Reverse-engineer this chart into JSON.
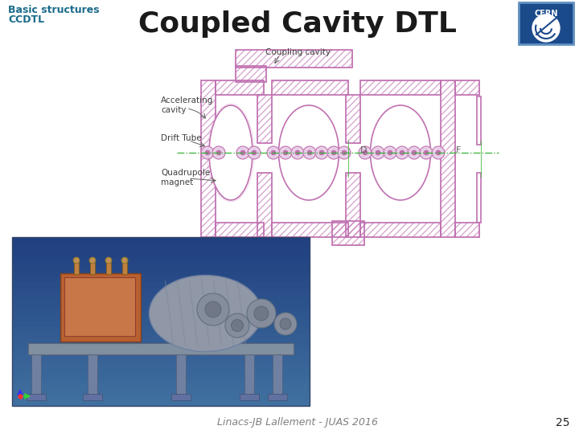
{
  "title": "Coupled Cavity DTL",
  "subtitle_line1": "Basic structures",
  "subtitle_line2": "CCDTL",
  "footer_text": "Linacs-JB Lallement - JUAS 2016",
  "page_number": "25",
  "bg_color": "#ffffff",
  "title_color": "#1a1a1a",
  "subtitle_color": "#1a6b8a",
  "footer_color": "#808080",
  "title_fontsize": 26,
  "subtitle_fontsize": 9,
  "footer_fontsize": 9,
  "page_fontsize": 10,
  "diagram_line_color": "#c070b0",
  "diagram_hatch_color": "#d090c0",
  "green_beam_color": "#30b030",
  "photo_bg_top": "#3060a0",
  "photo_bg_bot": "#203060",
  "photo_gray": "#a0a8b0",
  "photo_orange": "#c87040",
  "photo_darkgray": "#606878",
  "cern_bg": "#1a4a8a",
  "cern_text": "#ffffff"
}
